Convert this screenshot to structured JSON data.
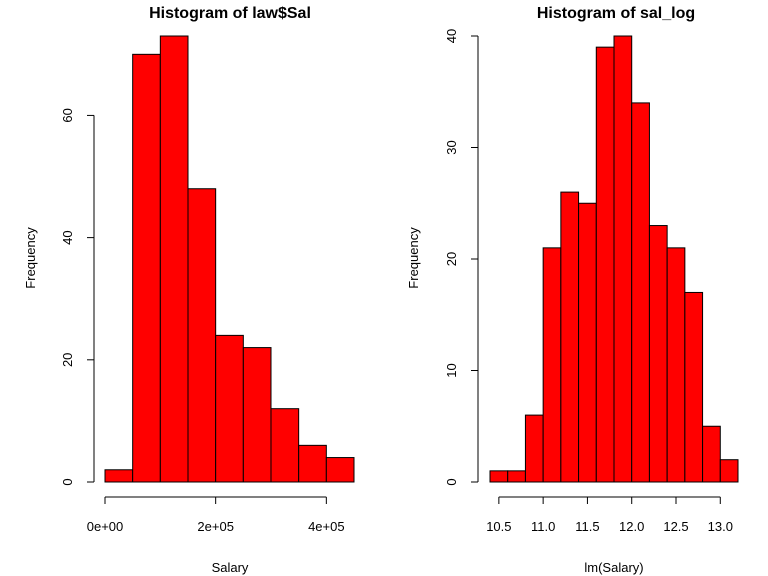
{
  "colors": {
    "bar_fill": "#ff0000",
    "bar_stroke": "#000000"
  },
  "chart_data": [
    {
      "type": "bar",
      "title": "Histogram of law$Sal",
      "xlabel": "Salary",
      "ylabel": "Frequency",
      "bin_edges": [
        0,
        50000,
        100000,
        150000,
        200000,
        250000,
        300000,
        350000,
        400000,
        450000
      ],
      "values": [
        2,
        70,
        73,
        48,
        24,
        22,
        12,
        6,
        4
      ],
      "xlim": [
        0,
        450000
      ],
      "ylim": [
        0,
        73
      ],
      "x_ticks": [
        0,
        200000,
        400000
      ],
      "x_tick_labels": [
        "0e+00",
        "2e+05",
        "4e+05"
      ],
      "y_ticks": [
        0,
        20,
        40,
        60
      ],
      "y_tick_labels": [
        "0",
        "20",
        "40",
        "60"
      ],
      "grid": false
    },
    {
      "type": "bar",
      "title": "Histogram of sal_log",
      "xlabel": "lm(Salary)",
      "ylabel": "Frequency",
      "bin_edges": [
        10.4,
        10.6,
        10.8,
        11.0,
        11.2,
        11.4,
        11.6,
        11.8,
        12.0,
        12.2,
        12.4,
        12.6,
        12.8,
        13.0,
        13.2
      ],
      "values": [
        1,
        1,
        6,
        21,
        26,
        25,
        39,
        40,
        34,
        23,
        21,
        17,
        5,
        2
      ],
      "xlim": [
        10.4,
        13.2
      ],
      "ylim": [
        0,
        40
      ],
      "x_ticks": [
        10.5,
        11.0,
        11.5,
        12.0,
        12.5,
        13.0
      ],
      "x_tick_labels": [
        "10.5",
        "11.0",
        "11.5",
        "12.0",
        "12.5",
        "13.0"
      ],
      "y_ticks": [
        0,
        10,
        20,
        30,
        40
      ],
      "y_tick_labels": [
        "0",
        "10",
        "20",
        "30",
        "40"
      ],
      "grid": false
    }
  ]
}
